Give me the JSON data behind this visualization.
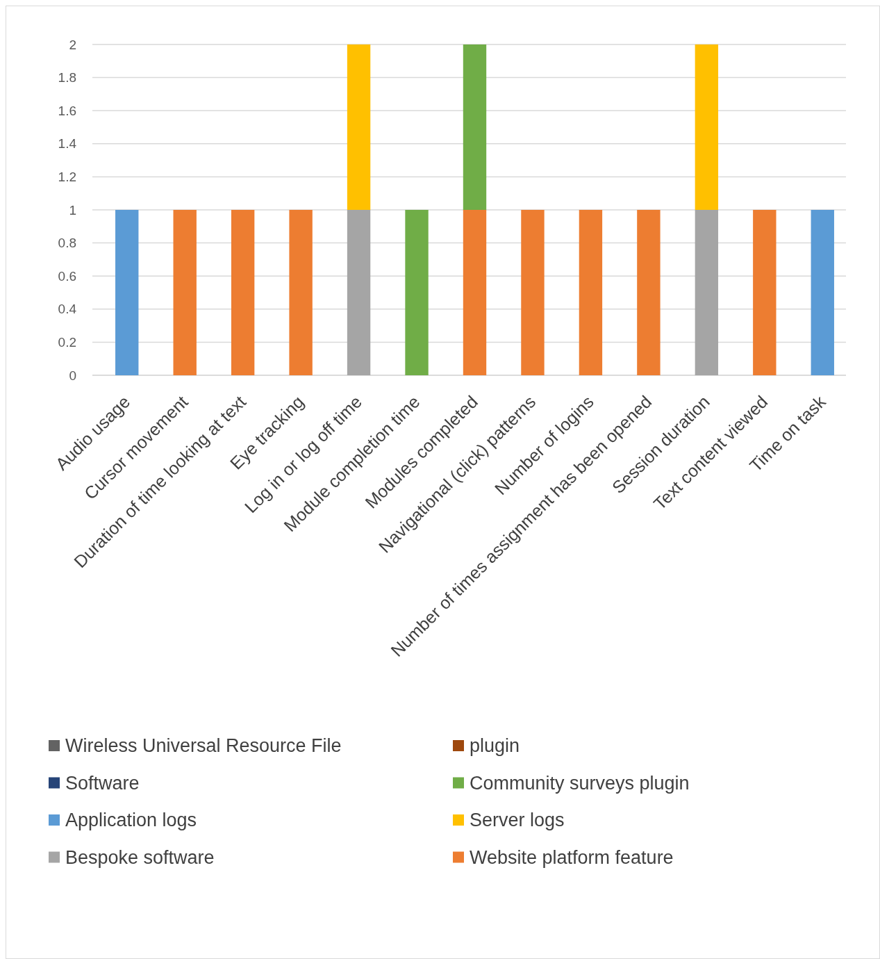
{
  "chart_data": {
    "type": "bar",
    "stacked": true,
    "categories": [
      "Audio usage",
      "Cursor movement",
      "Duration of time looking at text",
      "Eye tracking",
      "Log in or log off time",
      "Module completion time",
      "Modules completed",
      "Navigational (click) patterns",
      "Number of logins",
      "Number of times assignment has been opened",
      "Session duration",
      "Text content viewed",
      "Time on task"
    ],
    "series": [
      {
        "name": "Website platform feature",
        "color": "#ed7d31",
        "values": [
          null,
          1,
          1,
          1,
          null,
          null,
          1,
          1,
          1,
          1,
          null,
          1,
          null
        ]
      },
      {
        "name": "Bespoke software",
        "color": "#a5a5a5",
        "values": [
          null,
          null,
          null,
          null,
          1,
          null,
          null,
          null,
          null,
          null,
          1,
          null,
          null
        ]
      },
      {
        "name": "Server logs",
        "color": "#ffc000",
        "values": [
          null,
          null,
          null,
          null,
          1,
          null,
          null,
          null,
          null,
          null,
          1,
          null,
          null
        ]
      },
      {
        "name": "Application logs",
        "color": "#5b9bd5",
        "values": [
          1,
          null,
          null,
          null,
          null,
          null,
          null,
          null,
          null,
          null,
          null,
          null,
          1
        ]
      },
      {
        "name": "Community surveys plugin",
        "color": "#70ad47",
        "values": [
          null,
          null,
          null,
          null,
          null,
          1,
          1,
          null,
          null,
          null,
          null,
          null,
          null
        ]
      },
      {
        "name": "Software",
        "color": "#264478",
        "values": [
          null,
          null,
          null,
          null,
          null,
          null,
          null,
          null,
          null,
          null,
          null,
          null,
          null
        ]
      },
      {
        "name": "plugin",
        "color": "#9e480e",
        "values": [
          null,
          null,
          null,
          null,
          null,
          null,
          null,
          null,
          null,
          null,
          null,
          null,
          null
        ]
      },
      {
        "name": "Wireless Universal Resource File",
        "color": "#636363",
        "values": [
          null,
          null,
          null,
          null,
          null,
          null,
          null,
          null,
          null,
          null,
          null,
          null,
          null
        ]
      }
    ],
    "ylim": [
      0,
      2
    ],
    "yticks": [
      0,
      0.2,
      0.4,
      0.6,
      0.8,
      1,
      1.2,
      1.4,
      1.6,
      1.8,
      2
    ],
    "grid": "y",
    "legend": "bottom"
  }
}
